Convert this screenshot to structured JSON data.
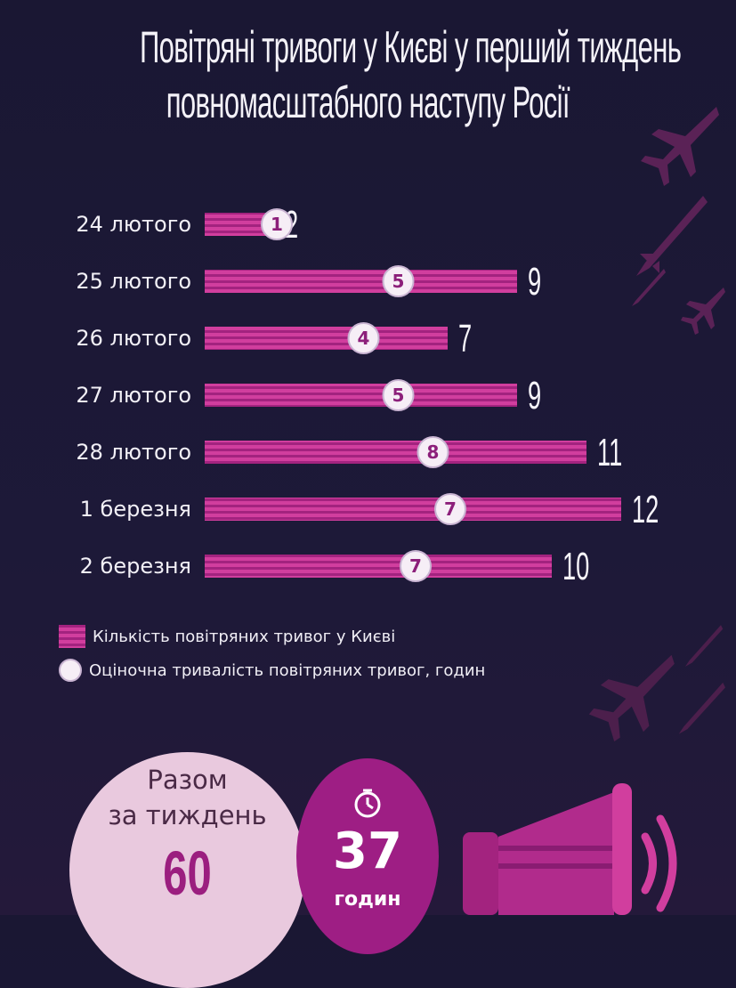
{
  "title": {
    "line1": "Повітряні тривоги у Києві у перший тиждень",
    "line2": "повномасштабного наступу Росії"
  },
  "chart_data": {
    "type": "bar",
    "orientation": "horizontal",
    "title": "Повітряні тривоги у Києві у перший тиждень повномасштабного наступу Росії",
    "categories": [
      "24 лютого",
      "25 лютого",
      "26 лютого",
      "27 лютого",
      "28 лютого",
      "1 березня",
      "2 березня"
    ],
    "series": [
      {
        "name": "Кількість повітряних тривог у Києві",
        "values": [
          2,
          9,
          7,
          9,
          11,
          12,
          10
        ]
      },
      {
        "name": "Оціночна тривалість повітряних тривог, годин",
        "values": [
          1,
          5,
          4,
          5,
          8,
          7,
          7
        ]
      }
    ],
    "xlim": [
      0,
      12
    ],
    "grid": false,
    "legend_position": "bottom-left"
  },
  "legend": {
    "bar_label": "Кількість повітряних тривог у Києві",
    "dot_label": "Оціночна тривалість повітряних тривог, годин"
  },
  "totals": {
    "line1": "Разом",
    "line2": "за тиждень",
    "alerts_value": "60",
    "hours_value": "37",
    "hours_unit": "годин"
  },
  "colors": {
    "bar_dark": "#a3237f",
    "bar_light": "#d13e9e",
    "dot_fill": "#f6eef6",
    "dot_text": "#8c1f7a",
    "background": "#1a1733"
  },
  "icons": [
    "clock-icon",
    "megaphone-icon",
    "fighter-jet-icon",
    "missile-icon"
  ]
}
